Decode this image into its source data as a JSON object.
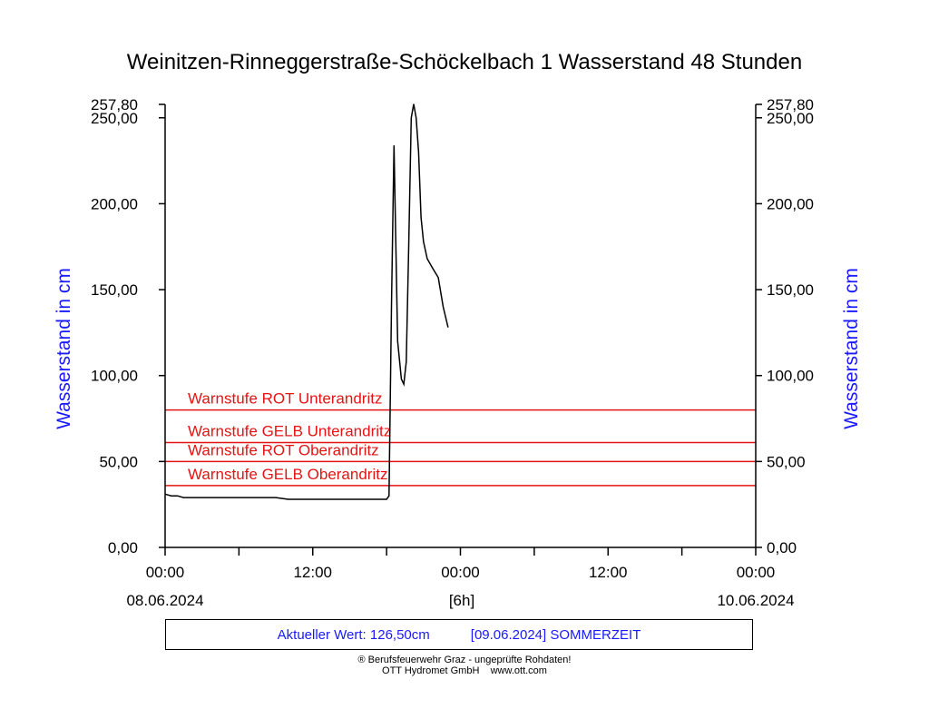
{
  "chart_data": {
    "type": "line",
    "title": "Weinitzen-Rinneggerstraße-Schöckelbach 1 Wasserstand 48 Stunden",
    "ylabel_left": "Wasserstand in cm",
    "ylabel_right": "Wasserstand in cm",
    "ylim": [
      0,
      257.8
    ],
    "y_ticks": [
      "0,00",
      "50,00",
      "100,00",
      "150,00",
      "200,00",
      "250,00"
    ],
    "y_tick_values": [
      0,
      50,
      100,
      150,
      200,
      250
    ],
    "y_max_label": "257,80",
    "xlim_hours": [
      0,
      48
    ],
    "x_ticks": [
      "00:00",
      "12:00",
      "00:00",
      "12:00",
      "00:00"
    ],
    "x_tick_hours": [
      0,
      12,
      24,
      36,
      48
    ],
    "date_start": "08.06.2024",
    "date_end": "10.06.2024",
    "x_interval_label": "[6h]",
    "thresholds": [
      {
        "label": "Warnstufe ROT Unterandritz",
        "value": 80
      },
      {
        "label": "Warnstufe GELB Unterandritz",
        "value": 61
      },
      {
        "label": "Warnstufe ROT Oberandritz",
        "value": 50
      },
      {
        "label": "Warnstufe GELB Oberandritz",
        "value": 36
      }
    ],
    "series": [
      {
        "x_hours": [
          0,
          0.5,
          1.0,
          1.5,
          2.0,
          3.0,
          4.0,
          5.0,
          6.0,
          7.0,
          8.0,
          9.0,
          10.0,
          11.0,
          12.0,
          13.0,
          14.0,
          15.0,
          16.0,
          17.0,
          18.0,
          18.2,
          18.4,
          18.6,
          18.9,
          19.2,
          19.4,
          19.6,
          19.8,
          20.0,
          20.2,
          20.4,
          20.6,
          20.8,
          21.0,
          21.3,
          21.7,
          22.2,
          22.6,
          23.0
        ],
        "values": [
          31,
          30,
          30,
          29,
          29,
          29,
          29,
          29,
          29,
          29,
          29,
          29,
          28,
          28,
          28,
          28,
          28,
          28,
          28,
          28,
          28,
          30,
          140,
          234,
          120,
          98,
          95,
          108,
          175,
          250,
          258,
          250,
          230,
          192,
          178,
          168,
          163,
          157,
          140,
          128
        ]
      }
    ]
  },
  "info_box": {
    "current_value": "Aktueller Wert: 126,50cm",
    "date_text": "[09.06.2024] SOMMERZEIT"
  },
  "footer": {
    "line1": "® Berufsfeuerwehr Graz - ungeprüfte Rohdaten!",
    "line2": "OTT Hydromet GmbH    www.ott.com"
  },
  "colors": {
    "axis_label": "#1a1aff",
    "threshold": "#e41414",
    "series": "#000000"
  }
}
